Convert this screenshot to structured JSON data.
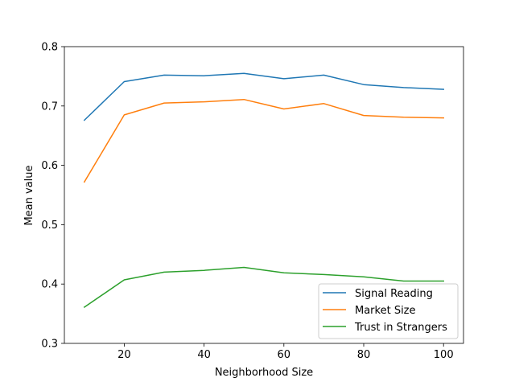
{
  "chart_data": {
    "type": "line",
    "title": "",
    "xlabel": "Neighborhood Size",
    "ylabel": "Mean value",
    "xlim": [
      5,
      105
    ],
    "ylim": [
      0.3,
      0.8
    ],
    "xticks": [
      20,
      40,
      60,
      80,
      100
    ],
    "yticks": [
      0.3,
      0.4,
      0.5,
      0.6,
      0.7,
      0.8
    ],
    "ytick_labels": [
      "0.3",
      "0.4",
      "0.5",
      "0.6",
      "0.7",
      "0.8"
    ],
    "grid": false,
    "legend_position": "lower-right",
    "x": [
      10,
      20,
      30,
      40,
      50,
      60,
      70,
      80,
      90,
      100
    ],
    "series": [
      {
        "name": "Signal Reading",
        "color": "#1f77b4",
        "values": [
          0.676,
          0.741,
          0.752,
          0.751,
          0.755,
          0.746,
          0.752,
          0.736,
          0.731,
          0.728
        ]
      },
      {
        "name": "Market Size",
        "color": "#ff7f0e",
        "values": [
          0.572,
          0.685,
          0.705,
          0.707,
          0.711,
          0.695,
          0.704,
          0.684,
          0.681,
          0.68
        ]
      },
      {
        "name": "Trust in Strangers",
        "color": "#2ca02c",
        "values": [
          0.361,
          0.407,
          0.42,
          0.423,
          0.428,
          0.419,
          0.416,
          0.412,
          0.405,
          0.405
        ]
      }
    ]
  }
}
